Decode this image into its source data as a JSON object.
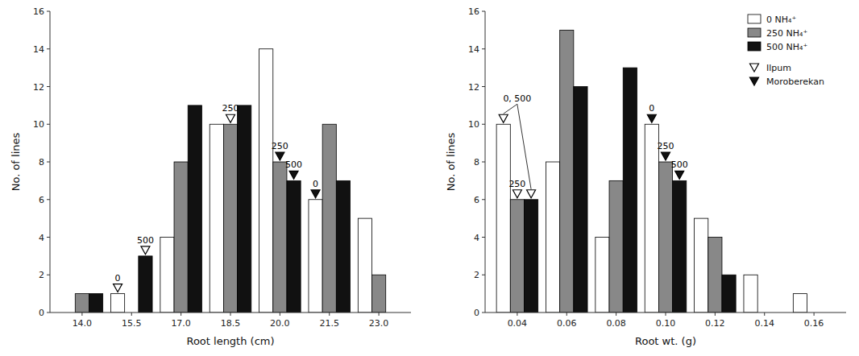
{
  "chart_data": [
    {
      "type": "bar",
      "xlabel": "Root length (cm)",
      "ylabel": "No. of lines",
      "categories": [
        "14.0",
        "15.5",
        "17.0",
        "18.5",
        "20.0",
        "21.5",
        "23.0"
      ],
      "series": [
        {
          "color": "white",
          "values": [
            0,
            1,
            4,
            10,
            14,
            6,
            5
          ]
        },
        {
          "color": "#888888",
          "values": [
            1,
            0,
            8,
            10,
            8,
            10,
            2
          ]
        },
        {
          "color": "#111111",
          "values": [
            1,
            3,
            11,
            11,
            7,
            7,
            0
          ]
        }
      ],
      "ylim": [
        0,
        16
      ],
      "yticks": [
        0,
        2,
        4,
        6,
        8,
        10,
        12,
        14,
        16
      ],
      "grid": false,
      "annotations": [
        {
          "text": "0",
          "category": "15.5",
          "series": [
            0
          ],
          "marker": "open"
        },
        {
          "text": "500",
          "category": "15.5",
          "series": [
            2
          ],
          "marker": "open"
        },
        {
          "text": "250",
          "category": "18.5",
          "series": [
            1
          ],
          "marker": "open"
        },
        {
          "text": "250",
          "category": "20.0",
          "series": [
            1
          ],
          "marker": "filled"
        },
        {
          "text": "500",
          "category": "20.0",
          "series": [
            2
          ],
          "marker": "filled"
        },
        {
          "text": "0",
          "category": "21.5",
          "series": [
            0
          ],
          "marker": "filled"
        }
      ]
    },
    {
      "type": "bar",
      "xlabel": "Root wt. (g)",
      "ylabel": "No. of lines",
      "categories": [
        "0.04",
        "0.06",
        "0.08",
        "0.10",
        "0.12",
        "0.14",
        "0.16"
      ],
      "series": [
        {
          "name": "0 NH₄⁺",
          "color": "white",
          "values": [
            10,
            8,
            4,
            10,
            5,
            2,
            1
          ]
        },
        {
          "name": "250 NH₄⁺",
          "color": "#888888",
          "values": [
            6,
            15,
            7,
            8,
            4,
            0,
            0
          ]
        },
        {
          "name": "500 NH₄⁺",
          "color": "#111111",
          "values": [
            6,
            12,
            13,
            7,
            2,
            0,
            0
          ]
        }
      ],
      "markers": [
        {
          "name": "Ilpum",
          "marker": "open"
        },
        {
          "name": "Moroberekan",
          "marker": "filled"
        }
      ],
      "ylim": [
        0,
        16
      ],
      "yticks": [
        0,
        2,
        4,
        6,
        8,
        10,
        12,
        14,
        16
      ],
      "grid": false,
      "legend": "upper right",
      "annotations": [
        {
          "text": "0, 500",
          "category": "0.04",
          "series": [
            0,
            2
          ],
          "marker": "open"
        },
        {
          "text": "250",
          "category": "0.04",
          "series": [
            1
          ],
          "marker": "open"
        },
        {
          "text": "0",
          "category": "0.10",
          "series": [
            0
          ],
          "marker": "filled"
        },
        {
          "text": "250",
          "category": "0.10",
          "series": [
            1
          ],
          "marker": "filled"
        },
        {
          "text": "500",
          "category": "0.10",
          "series": [
            2
          ],
          "marker": "filled"
        }
      ]
    }
  ]
}
